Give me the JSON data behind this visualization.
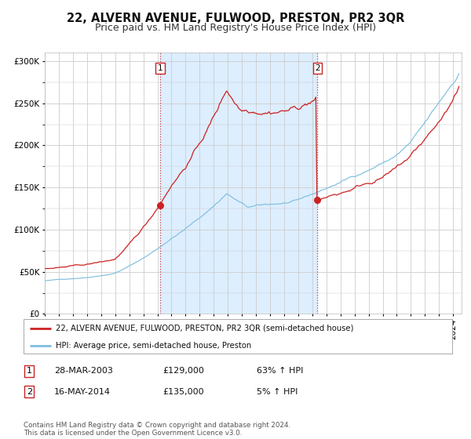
{
  "title": "22, ALVERN AVENUE, FULWOOD, PRESTON, PR2 3QR",
  "subtitle": "Price paid vs. HM Land Registry's House Price Index (HPI)",
  "legend_line1": "22, ALVERN AVENUE, FULWOOD, PRESTON, PR2 3QR (semi-detached house)",
  "legend_line2": "HPI: Average price, semi-detached house, Preston",
  "footnote": "Contains HM Land Registry data © Crown copyright and database right 2024.\nThis data is licensed under the Open Government Licence v3.0.",
  "transaction1_date": "28-MAR-2003",
  "transaction1_price": "£129,000",
  "transaction1_hpi": "63% ↑ HPI",
  "transaction2_date": "16-MAY-2014",
  "transaction2_price": "£135,000",
  "transaction2_hpi": "5% ↑ HPI",
  "sale1_date_num": 2003.2,
  "sale1_price": 129000,
  "sale2_date_num": 2014.37,
  "sale2_price": 135000,
  "hpi_color": "#7fbfdf",
  "price_color": "#cc2222",
  "sale_dot_color": "#cc2222",
  "vline_color": "#cc2222",
  "shade_color": "#ddeeff",
  "background_color": "#ffffff",
  "grid_color": "#cccccc",
  "ylim": [
    0,
    310000
  ],
  "yticks": [
    0,
    50000,
    100000,
    150000,
    200000,
    250000,
    300000
  ],
  "title_fontsize": 10.5,
  "subtitle_fontsize": 9,
  "tick_fontsize": 7.5
}
